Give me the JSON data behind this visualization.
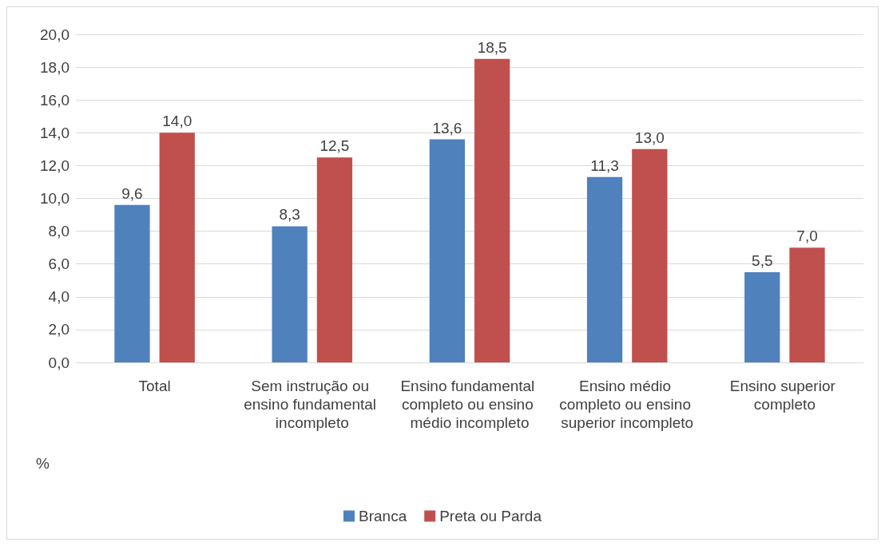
{
  "chart_data": {
    "type": "bar",
    "ylabel": "%",
    "categories": [
      "Total",
      "Sem instrução ou ensino fundamental incompleto",
      "Ensino fundamental completo ou ensino médio incompleto",
      "Ensino médio completo ou ensino superior incompleto",
      "Ensino superior completo"
    ],
    "series": [
      {
        "name": "Branca",
        "color": "#4f81bd",
        "values": [
          9.6,
          8.3,
          13.6,
          11.3,
          5.5
        ],
        "value_labels": [
          "9,6",
          "8,3",
          "13,6",
          "11,3",
          "5,5"
        ]
      },
      {
        "name": "Preta ou Parda",
        "color": "#c0504d",
        "values": [
          14.0,
          12.5,
          18.5,
          13.0,
          7.0
        ],
        "value_labels": [
          "14,0",
          "12,5",
          "18,5",
          "13,0",
          "7,0"
        ]
      }
    ],
    "ylim": [
      0,
      20
    ],
    "yticks": [
      {
        "value": 0,
        "label": "0,0"
      },
      {
        "value": 2,
        "label": "2,0"
      },
      {
        "value": 4,
        "label": "4,0"
      },
      {
        "value": 6,
        "label": "6,0"
      },
      {
        "value": 8,
        "label": "8,0"
      },
      {
        "value": 10,
        "label": "10,0"
      },
      {
        "value": 12,
        "label": "12,0"
      },
      {
        "value": 14,
        "label": "14,0"
      },
      {
        "value": 16,
        "label": "16,0"
      },
      {
        "value": 18,
        "label": "18,0"
      },
      {
        "value": 20,
        "label": "20,0"
      }
    ],
    "grid": "y",
    "legend": "bottom"
  }
}
